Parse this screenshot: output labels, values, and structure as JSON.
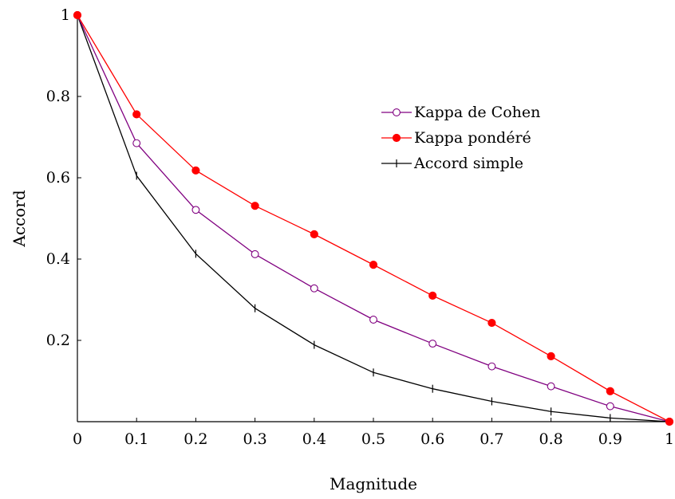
{
  "chart_data": {
    "type": "line",
    "xlabel": "Magnitude",
    "ylabel": "Accord",
    "xlim": [
      0,
      1
    ],
    "ylim": [
      0,
      1
    ],
    "xticks": [
      "0",
      "0.1",
      "0.2",
      "0.3",
      "0.4",
      "0.5",
      "0.6",
      "0.7",
      "0.8",
      "0.9",
      "1"
    ],
    "yticks": [
      "0.2",
      "0.4",
      "0.6",
      "0.8",
      "1"
    ],
    "grid": false,
    "legend_position": "top-right",
    "x": [
      0,
      0.1,
      0.2,
      0.3,
      0.4,
      0.5,
      0.6,
      0.7,
      0.8,
      0.9,
      1
    ],
    "series": [
      {
        "name": "Kappa de Cohen",
        "color": "#800080",
        "marker": "open-circle",
        "values": [
          1,
          0.685,
          0.521,
          0.412,
          0.328,
          0.251,
          0.192,
          0.136,
          0.087,
          0.038,
          0
        ]
      },
      {
        "name": "Kappa pondéré",
        "color": "#ff0000",
        "marker": "filled-circle",
        "values": [
          1,
          0.756,
          0.618,
          0.531,
          0.461,
          0.386,
          0.31,
          0.243,
          0.161,
          0.075,
          0
        ]
      },
      {
        "name": "Accord simple",
        "color": "#000000",
        "marker": "vertical-bar",
        "values": [
          1,
          0.605,
          0.413,
          0.279,
          0.189,
          0.121,
          0.081,
          0.05,
          0.025,
          0.009,
          0
        ]
      }
    ]
  }
}
